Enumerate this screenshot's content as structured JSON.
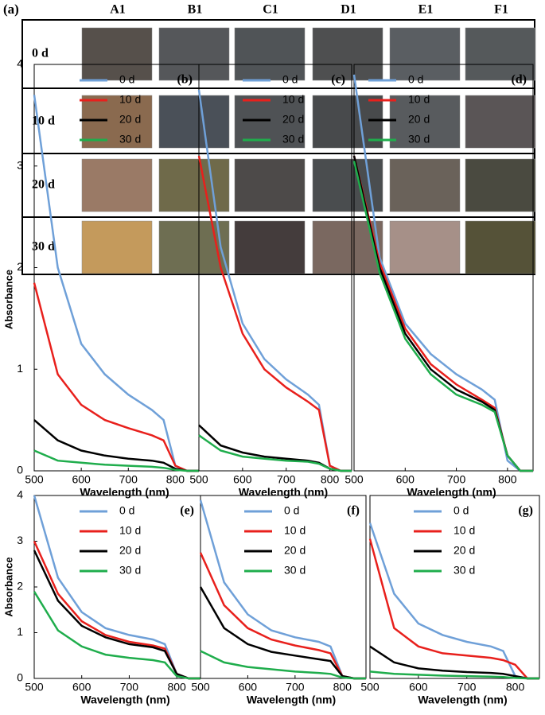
{
  "photo_panel": {
    "label": "(a)",
    "columns": [
      "A1",
      "B1",
      "C1",
      "D1",
      "E1",
      "F1"
    ],
    "rows": [
      "0 d",
      "10 d",
      "20 d",
      "30 d"
    ]
  },
  "chart_data": [
    {
      "type": "line",
      "panel": "(b)",
      "xlabel": "Wavelength (nm)",
      "ylabel": "Absorbance",
      "x": [
        500,
        550,
        600,
        650,
        700,
        750,
        775,
        800,
        825,
        850
      ],
      "xlim": [
        500,
        850
      ],
      "xticks": [
        500,
        600,
        700,
        800
      ],
      "ylim": [
        0,
        4
      ],
      "yticks": [
        0,
        1,
        2,
        3,
        4
      ],
      "series": [
        {
          "name": "0 d",
          "color": "#6fa0d8",
          "values": [
            3.7,
            2.0,
            1.25,
            0.95,
            0.75,
            0.6,
            0.5,
            0.05,
            0,
            0
          ]
        },
        {
          "name": "10 d",
          "color": "#e8201c",
          "values": [
            1.85,
            0.95,
            0.65,
            0.5,
            0.42,
            0.35,
            0.3,
            0.05,
            0,
            0
          ]
        },
        {
          "name": "20 d",
          "color": "#000000",
          "values": [
            0.5,
            0.3,
            0.2,
            0.15,
            0.12,
            0.1,
            0.08,
            0.02,
            0,
            0
          ]
        },
        {
          "name": "30 d",
          "color": "#1fad4c",
          "values": [
            0.2,
            0.1,
            0.08,
            0.06,
            0.05,
            0.04,
            0.03,
            0.01,
            0,
            0
          ]
        }
      ]
    },
    {
      "type": "line",
      "panel": "(c)",
      "xlabel": "Wavelength (nm)",
      "x": [
        500,
        550,
        600,
        650,
        700,
        750,
        775,
        800,
        825,
        850
      ],
      "xlim": [
        500,
        850
      ],
      "xticks": [
        500,
        600,
        700,
        800
      ],
      "ylim": [
        0,
        4
      ],
      "series": [
        {
          "name": "0 d",
          "color": "#6fa0d8",
          "values": [
            3.75,
            2.2,
            1.45,
            1.1,
            0.9,
            0.75,
            0.65,
            0.05,
            0,
            0
          ]
        },
        {
          "name": "10 d",
          "color": "#e8201c",
          "values": [
            3.1,
            2.0,
            1.35,
            1.0,
            0.82,
            0.68,
            0.6,
            0.05,
            0,
            0
          ]
        },
        {
          "name": "20 d",
          "color": "#000000",
          "values": [
            0.45,
            0.25,
            0.18,
            0.14,
            0.12,
            0.1,
            0.08,
            0.02,
            0,
            0
          ]
        },
        {
          "name": "30 d",
          "color": "#1fad4c",
          "values": [
            0.35,
            0.2,
            0.14,
            0.12,
            0.1,
            0.09,
            0.07,
            0.02,
            0,
            0
          ]
        }
      ]
    },
    {
      "type": "line",
      "panel": "(d)",
      "xlabel": "Wavelength (nm)",
      "x": [
        500,
        550,
        600,
        650,
        700,
        750,
        775,
        800,
        825,
        850
      ],
      "xlim": [
        500,
        850
      ],
      "xticks": [
        500,
        600,
        700,
        800
      ],
      "ylim": [
        0,
        4
      ],
      "series": [
        {
          "name": "0 d",
          "color": "#6fa0d8",
          "values": [
            3.9,
            2.1,
            1.45,
            1.15,
            0.95,
            0.8,
            0.7,
            0.1,
            0,
            0
          ]
        },
        {
          "name": "10 d",
          "color": "#e8201c",
          "values": [
            3.1,
            2.05,
            1.4,
            1.05,
            0.85,
            0.7,
            0.62,
            0.15,
            0,
            0
          ]
        },
        {
          "name": "20 d",
          "color": "#000000",
          "values": [
            3.1,
            2.0,
            1.35,
            1.0,
            0.8,
            0.68,
            0.6,
            0.15,
            0,
            0
          ]
        },
        {
          "name": "30 d",
          "color": "#1fad4c",
          "values": [
            3.05,
            1.95,
            1.3,
            0.95,
            0.75,
            0.65,
            0.58,
            0.15,
            0,
            0
          ]
        }
      ]
    },
    {
      "type": "line",
      "panel": "(e)",
      "xlabel": "Wavelength (nm)",
      "ylabel": "Absorbance",
      "x": [
        500,
        550,
        600,
        650,
        700,
        750,
        775,
        800,
        825,
        850
      ],
      "xlim": [
        500,
        850
      ],
      "xticks": [
        500,
        600,
        700,
        800
      ],
      "ylim": [
        0,
        4
      ],
      "yticks": [
        0,
        1,
        2,
        3,
        4
      ],
      "series": [
        {
          "name": "0 d",
          "color": "#6fa0d8",
          "values": [
            4.0,
            2.2,
            1.45,
            1.1,
            0.95,
            0.85,
            0.75,
            0.1,
            0,
            0
          ]
        },
        {
          "name": "10 d",
          "color": "#e8201c",
          "values": [
            3.0,
            1.85,
            1.25,
            0.95,
            0.8,
            0.72,
            0.65,
            0.1,
            0,
            0
          ]
        },
        {
          "name": "20 d",
          "color": "#000000",
          "values": [
            2.8,
            1.7,
            1.15,
            0.9,
            0.75,
            0.68,
            0.6,
            0.1,
            0,
            0
          ]
        },
        {
          "name": "30 d",
          "color": "#1fad4c",
          "values": [
            1.9,
            1.05,
            0.7,
            0.52,
            0.45,
            0.4,
            0.35,
            0.05,
            0,
            0
          ]
        }
      ]
    },
    {
      "type": "line",
      "panel": "(f)",
      "xlabel": "Wavelength (nm)",
      "x": [
        500,
        550,
        600,
        650,
        700,
        750,
        775,
        800,
        825,
        850
      ],
      "xlim": [
        500,
        850
      ],
      "xticks": [
        500,
        600,
        700,
        800
      ],
      "ylim": [
        0,
        4
      ],
      "series": [
        {
          "name": "0 d",
          "color": "#6fa0d8",
          "values": [
            3.9,
            2.1,
            1.4,
            1.05,
            0.9,
            0.8,
            0.7,
            0.05,
            0,
            0
          ]
        },
        {
          "name": "10 d",
          "color": "#e8201c",
          "values": [
            2.75,
            1.6,
            1.1,
            0.85,
            0.72,
            0.62,
            0.55,
            0.05,
            0,
            0
          ]
        },
        {
          "name": "20 d",
          "color": "#000000",
          "values": [
            2.0,
            1.1,
            0.75,
            0.58,
            0.5,
            0.42,
            0.38,
            0.05,
            0,
            0
          ]
        },
        {
          "name": "30 d",
          "color": "#1fad4c",
          "values": [
            0.6,
            0.35,
            0.25,
            0.2,
            0.15,
            0.12,
            0.1,
            0.02,
            0,
            0
          ]
        }
      ]
    },
    {
      "type": "line",
      "panel": "(g)",
      "xlabel": "Wavelength (nm)",
      "x": [
        500,
        550,
        600,
        650,
        700,
        750,
        775,
        800,
        825,
        850
      ],
      "xlim": [
        500,
        850
      ],
      "xticks": [
        500,
        600,
        700,
        800
      ],
      "ylim": [
        0,
        4
      ],
      "series": [
        {
          "name": "0 d",
          "color": "#6fa0d8",
          "values": [
            3.4,
            1.85,
            1.2,
            0.95,
            0.8,
            0.7,
            0.6,
            0.05,
            0,
            0
          ]
        },
        {
          "name": "10 d",
          "color": "#e8201c",
          "values": [
            3.05,
            1.1,
            0.7,
            0.55,
            0.5,
            0.45,
            0.4,
            0.3,
            0,
            0
          ]
        },
        {
          "name": "20 d",
          "color": "#000000",
          "values": [
            0.7,
            0.35,
            0.22,
            0.17,
            0.14,
            0.12,
            0.1,
            0.05,
            0,
            0
          ]
        },
        {
          "name": "30 d",
          "color": "#1fad4c",
          "values": [
            0.15,
            0.1,
            0.08,
            0.06,
            0.05,
            0.04,
            0.03,
            0.01,
            0,
            0
          ]
        }
      ]
    }
  ]
}
